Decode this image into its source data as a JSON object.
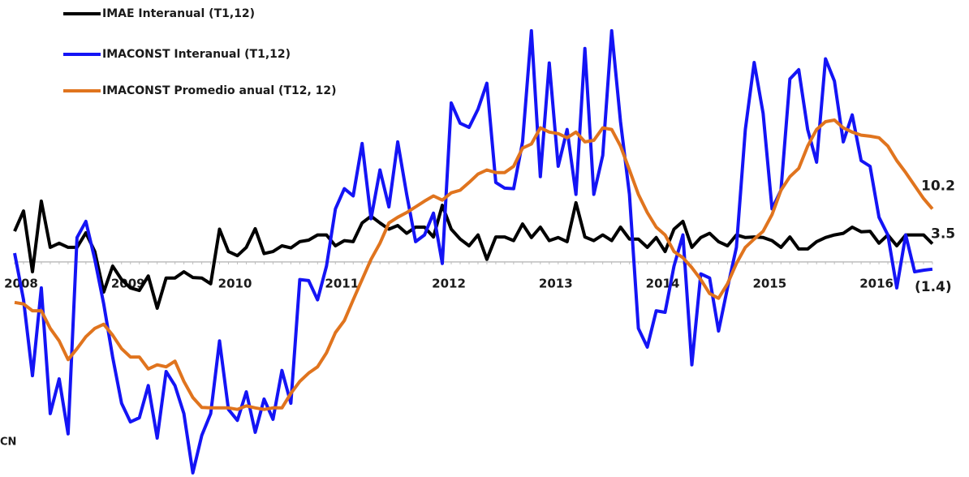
{
  "chart_data": {
    "type": "line",
    "note": "CN",
    "categories": [
      "2008",
      null,
      null,
      null,
      null,
      null,
      null,
      null,
      null,
      null,
      null,
      null,
      "2009",
      null,
      null,
      null,
      null,
      null,
      null,
      null,
      null,
      null,
      null,
      null,
      "2010",
      null,
      null,
      null,
      null,
      null,
      null,
      null,
      null,
      null,
      null,
      null,
      "2011",
      null,
      null,
      null,
      null,
      null,
      null,
      null,
      null,
      null,
      null,
      null,
      "2012",
      null,
      null,
      null,
      null,
      null,
      null,
      null,
      null,
      null,
      null,
      null,
      "2013",
      null,
      null,
      null,
      null,
      null,
      null,
      null,
      null,
      null,
      null,
      null,
      "2014",
      null,
      null,
      null,
      null,
      null,
      null,
      null,
      null,
      null,
      null,
      null,
      "2015",
      null,
      null,
      null,
      null,
      null,
      null,
      null,
      null,
      null,
      null,
      null,
      "2016",
      null,
      null,
      null,
      null,
      null,
      null,
      null
    ],
    "ylim": [
      -41.4,
      46.2
    ],
    "legend": "top-left",
    "series": [
      {
        "name": "IMAE Interanual (T1,12)",
        "color": "#000000",
        "values": [
          5.9,
          9.8,
          -1.9,
          11.7,
          2.8,
          3.6,
          2.8,
          2.8,
          5.6,
          2.0,
          -5.8,
          -0.8,
          -3.4,
          -5,
          -5.5,
          -2.7,
          -8.9,
          -3.1,
          -3.1,
          -1.9,
          -3,
          -3.1,
          -4.2,
          6.3,
          2,
          1.2,
          2.8,
          6.4,
          1.6,
          2,
          3.1,
          2.7,
          3.9,
          4.2,
          5.2,
          5.2,
          3.1,
          4.1,
          3.9,
          7.5,
          8.8,
          7.5,
          6.3,
          7,
          5.5,
          6.7,
          6.7,
          4.8,
          10.9,
          6.3,
          4.4,
          3.1,
          5.2,
          0.5,
          4.8,
          4.8,
          4.1,
          7.3,
          4.7,
          6.7,
          4.1,
          4.7,
          3.9,
          11.4,
          4.8,
          4.1,
          5.2,
          4.1,
          6.7,
          4.4,
          4.4,
          2.8,
          4.7,
          2,
          6.3,
          7.8,
          2.8,
          4.7,
          5.5,
          3.9,
          3.1,
          5.2,
          4.7,
          4.8,
          4.7,
          4.1,
          2.8,
          4.8,
          2.5,
          2.5,
          3.9,
          4.7,
          5.2,
          5.5,
          6.7,
          5.8,
          5.9,
          3.6,
          5.2,
          3.1,
          5.2,
          5.2,
          5.2,
          3.5
        ]
      },
      {
        "name": "IMACONST Interanual (T1,12)",
        "color": "#1414f5",
        "values": [
          1.7,
          -7.3,
          -21.9,
          -5,
          -29.2,
          -22.5,
          -33.1,
          4.7,
          7.8,
          0.5,
          -8.1,
          -18.3,
          -27.2,
          -30.8,
          -30,
          -23.8,
          -33.9,
          -21.1,
          -23.8,
          -29.2,
          -40.6,
          -33.4,
          -29.2,
          -15.2,
          -28.4,
          -30.5,
          -25,
          -32.8,
          -26.4,
          -30.3,
          -20.9,
          -27.2,
          -3.4,
          -3.6,
          -7.3,
          -0.8,
          10.2,
          14.1,
          12.7,
          22.8,
          8.3,
          17.7,
          10.6,
          23.1,
          13,
          3.9,
          5.2,
          9.4,
          -0.3,
          30.6,
          26.7,
          25.9,
          29.4,
          34.4,
          15.3,
          14.2,
          14.1,
          23.1,
          44.5,
          16.4,
          38.3,
          18.4,
          25.5,
          13,
          41.1,
          13,
          20.5,
          44.5,
          27,
          13,
          -12.8,
          -16.4,
          -9.4,
          -9.7,
          -0.8,
          5.2,
          -19.8,
          -2.3,
          -3.1,
          -13.3,
          -5,
          2.8,
          25.5,
          38.4,
          28.6,
          10.2,
          13.8,
          35.2,
          37,
          25.5,
          19.2,
          39.1,
          34.8,
          23.1,
          28.3,
          19.5,
          18.4,
          8.6,
          5.2,
          -5,
          5.2,
          -1.9,
          -1.6,
          -1.4
        ],
        "value_labels": {
          "103": "(1.4)"
        }
      },
      {
        "name": "IMACONST Promedio anual (T12, 12)",
        "color": "#e0741e",
        "values": [
          -7.8,
          -8.1,
          -9.4,
          -9.4,
          -12.8,
          -15.2,
          -18.8,
          -16.7,
          -14.4,
          -12.8,
          -12,
          -14.1,
          -16.7,
          -18.3,
          -18.3,
          -20.6,
          -19.8,
          -20.2,
          -19.1,
          -23,
          -26.1,
          -28,
          -28.1,
          -28.1,
          -28.1,
          -28.4,
          -27.7,
          -28.1,
          -28.4,
          -28.1,
          -28.1,
          -25.3,
          -23,
          -21.4,
          -20.2,
          -17.5,
          -13.6,
          -11.3,
          -7.3,
          -3.4,
          0.5,
          3.6,
          7.5,
          8.6,
          9.5,
          10.6,
          11.7,
          12.7,
          11.9,
          13.3,
          13.8,
          15.3,
          16.9,
          17.7,
          17.2,
          17.2,
          18.4,
          21.9,
          22.7,
          25.8,
          25,
          24.7,
          23.9,
          25,
          23.1,
          23.4,
          25.8,
          25.5,
          22.3,
          17.7,
          13,
          9.5,
          6.7,
          5.2,
          2,
          0.8,
          -1.1,
          -3.4,
          -6.1,
          -7,
          -4.2,
          -0.3,
          2.8,
          4.4,
          5.9,
          9.1,
          13.8,
          16.4,
          18,
          22.3,
          25.5,
          27,
          27.3,
          25.8,
          25,
          24.4,
          24.2,
          23.9,
          22.3,
          19.5,
          17.2,
          14.7,
          12.2,
          10.2
        ]
      }
    ]
  }
}
